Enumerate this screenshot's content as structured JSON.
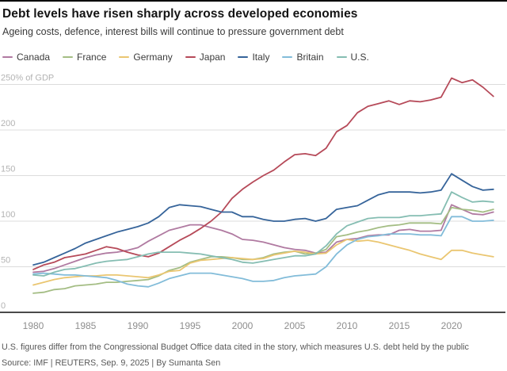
{
  "header": {
    "title": "Debt levels have risen sharply across developed economies",
    "subtitle": "Ageing costs, defence, interest bills will continue to pressure government debt"
  },
  "footer": {
    "note": "U.S. figures differ from the Congressional Budget Office data cited in the story, which measures U.S. debt held by the public",
    "source": "Source: IMF | REUTERS, Sep. 9, 2025 | By Sumanta Sen"
  },
  "colors": {
    "top_rule": "#000000",
    "grid": "#dcdcdc",
    "baseline": "#4a4a4a",
    "x_tick_text": "#8e8e8e",
    "y_tick_text": "#b3b3b3"
  },
  "chart_data": {
    "type": "line",
    "title": "Debt levels have risen sharply across developed economies",
    "xlabel": "",
    "ylabel": "% of GDP",
    "grid": true,
    "legend_position": "top",
    "xlim": [
      1980,
      2024
    ],
    "ylim": [
      0,
      260
    ],
    "x_ticks": [
      1980,
      1985,
      1990,
      1995,
      2000,
      2005,
      2010,
      2015,
      2020
    ],
    "y_ticks": [
      {
        "value": 0,
        "label": "0"
      },
      {
        "value": 50,
        "label": "50"
      },
      {
        "value": 100,
        "label": "100"
      },
      {
        "value": 150,
        "label": "150"
      },
      {
        "value": 200,
        "label": "200"
      },
      {
        "value": 250,
        "label": "250% of GDP"
      }
    ],
    "x": [
      1980,
      1981,
      1982,
      1983,
      1984,
      1985,
      1986,
      1987,
      1988,
      1989,
      1990,
      1991,
      1992,
      1993,
      1994,
      1995,
      1996,
      1997,
      1998,
      1999,
      2000,
      2001,
      2002,
      2003,
      2004,
      2005,
      2006,
      2007,
      2008,
      2009,
      2010,
      2011,
      2012,
      2013,
      2014,
      2015,
      2016,
      2017,
      2018,
      2019,
      2020,
      2021,
      2022,
      2023,
      2024
    ],
    "series": [
      {
        "name": "Canada",
        "color": "#b07aa1",
        "values": [
          44,
          45,
          48,
          52,
          56,
          60,
          63,
          65,
          66,
          68,
          71,
          78,
          84,
          90,
          93,
          96,
          96,
          93,
          90,
          86,
          80,
          79,
          77,
          74,
          71,
          69,
          68,
          65,
          66,
          77,
          80,
          81,
          84,
          85,
          85,
          90,
          91,
          89,
          89,
          90,
          118,
          113,
          108,
          107,
          110
        ]
      },
      {
        "name": "France",
        "color": "#a4bd84",
        "values": [
          21,
          22,
          25,
          26,
          29,
          30,
          31,
          33,
          33,
          34,
          35,
          36,
          40,
          46,
          49,
          55,
          58,
          61,
          61,
          60,
          58,
          58,
          60,
          64,
          66,
          67,
          64,
          65,
          69,
          83,
          85,
          88,
          90,
          93,
          95,
          96,
          98,
          98,
          98,
          97,
          115,
          113,
          112,
          110,
          113
        ]
      },
      {
        "name": "Germany",
        "color": "#eac671",
        "values": [
          30,
          33,
          36,
          38,
          39,
          40,
          40,
          41,
          41,
          40,
          39,
          38,
          41,
          45,
          46,
          54,
          57,
          58,
          59,
          60,
          59,
          58,
          59,
          63,
          65,
          67,
          66,
          64,
          65,
          74,
          80,
          78,
          79,
          77,
          74,
          71,
          68,
          64,
          61,
          58,
          68,
          68,
          65,
          63,
          61
        ]
      },
      {
        "name": "Japan",
        "color": "#b64a59",
        "values": [
          47,
          52,
          55,
          60,
          62,
          64,
          68,
          72,
          70,
          66,
          63,
          61,
          65,
          72,
          79,
          85,
          92,
          100,
          110,
          125,
          135,
          143,
          150,
          156,
          165,
          173,
          174,
          172,
          180,
          198,
          205,
          219,
          226,
          229,
          232,
          228,
          232,
          231,
          233,
          236,
          257,
          252,
          255,
          247,
          237
        ]
      },
      {
        "name": "Italy",
        "color": "#36649a",
        "values": [
          52,
          55,
          60,
          65,
          70,
          76,
          80,
          84,
          88,
          91,
          94,
          98,
          105,
          115,
          118,
          117,
          116,
          113,
          110,
          110,
          105,
          105,
          102,
          100,
          100,
          102,
          103,
          100,
          103,
          113,
          115,
          117,
          123,
          129,
          132,
          132,
          132,
          131,
          132,
          134,
          152,
          145,
          138,
          134,
          135
        ]
      },
      {
        "name": "Britain",
        "color": "#82bcd9",
        "values": [
          42,
          43,
          42,
          41,
          41,
          40,
          39,
          38,
          35,
          31,
          29,
          28,
          32,
          37,
          40,
          43,
          43,
          43,
          41,
          39,
          37,
          34,
          34,
          35,
          38,
          40,
          41,
          42,
          50,
          64,
          74,
          80,
          83,
          84,
          86,
          86,
          86,
          85,
          85,
          84,
          105,
          105,
          100,
          100,
          101
        ]
      },
      {
        "name": "U.S.",
        "color": "#85bdb2",
        "values": [
          41,
          40,
          44,
          47,
          48,
          51,
          54,
          56,
          57,
          58,
          61,
          64,
          66,
          66,
          66,
          65,
          64,
          62,
          60,
          58,
          55,
          54,
          56,
          58,
          60,
          62,
          62,
          64,
          73,
          86,
          95,
          99,
          103,
          104,
          104,
          104,
          106,
          106,
          107,
          108,
          132,
          126,
          121,
          122,
          121
        ]
      }
    ]
  }
}
